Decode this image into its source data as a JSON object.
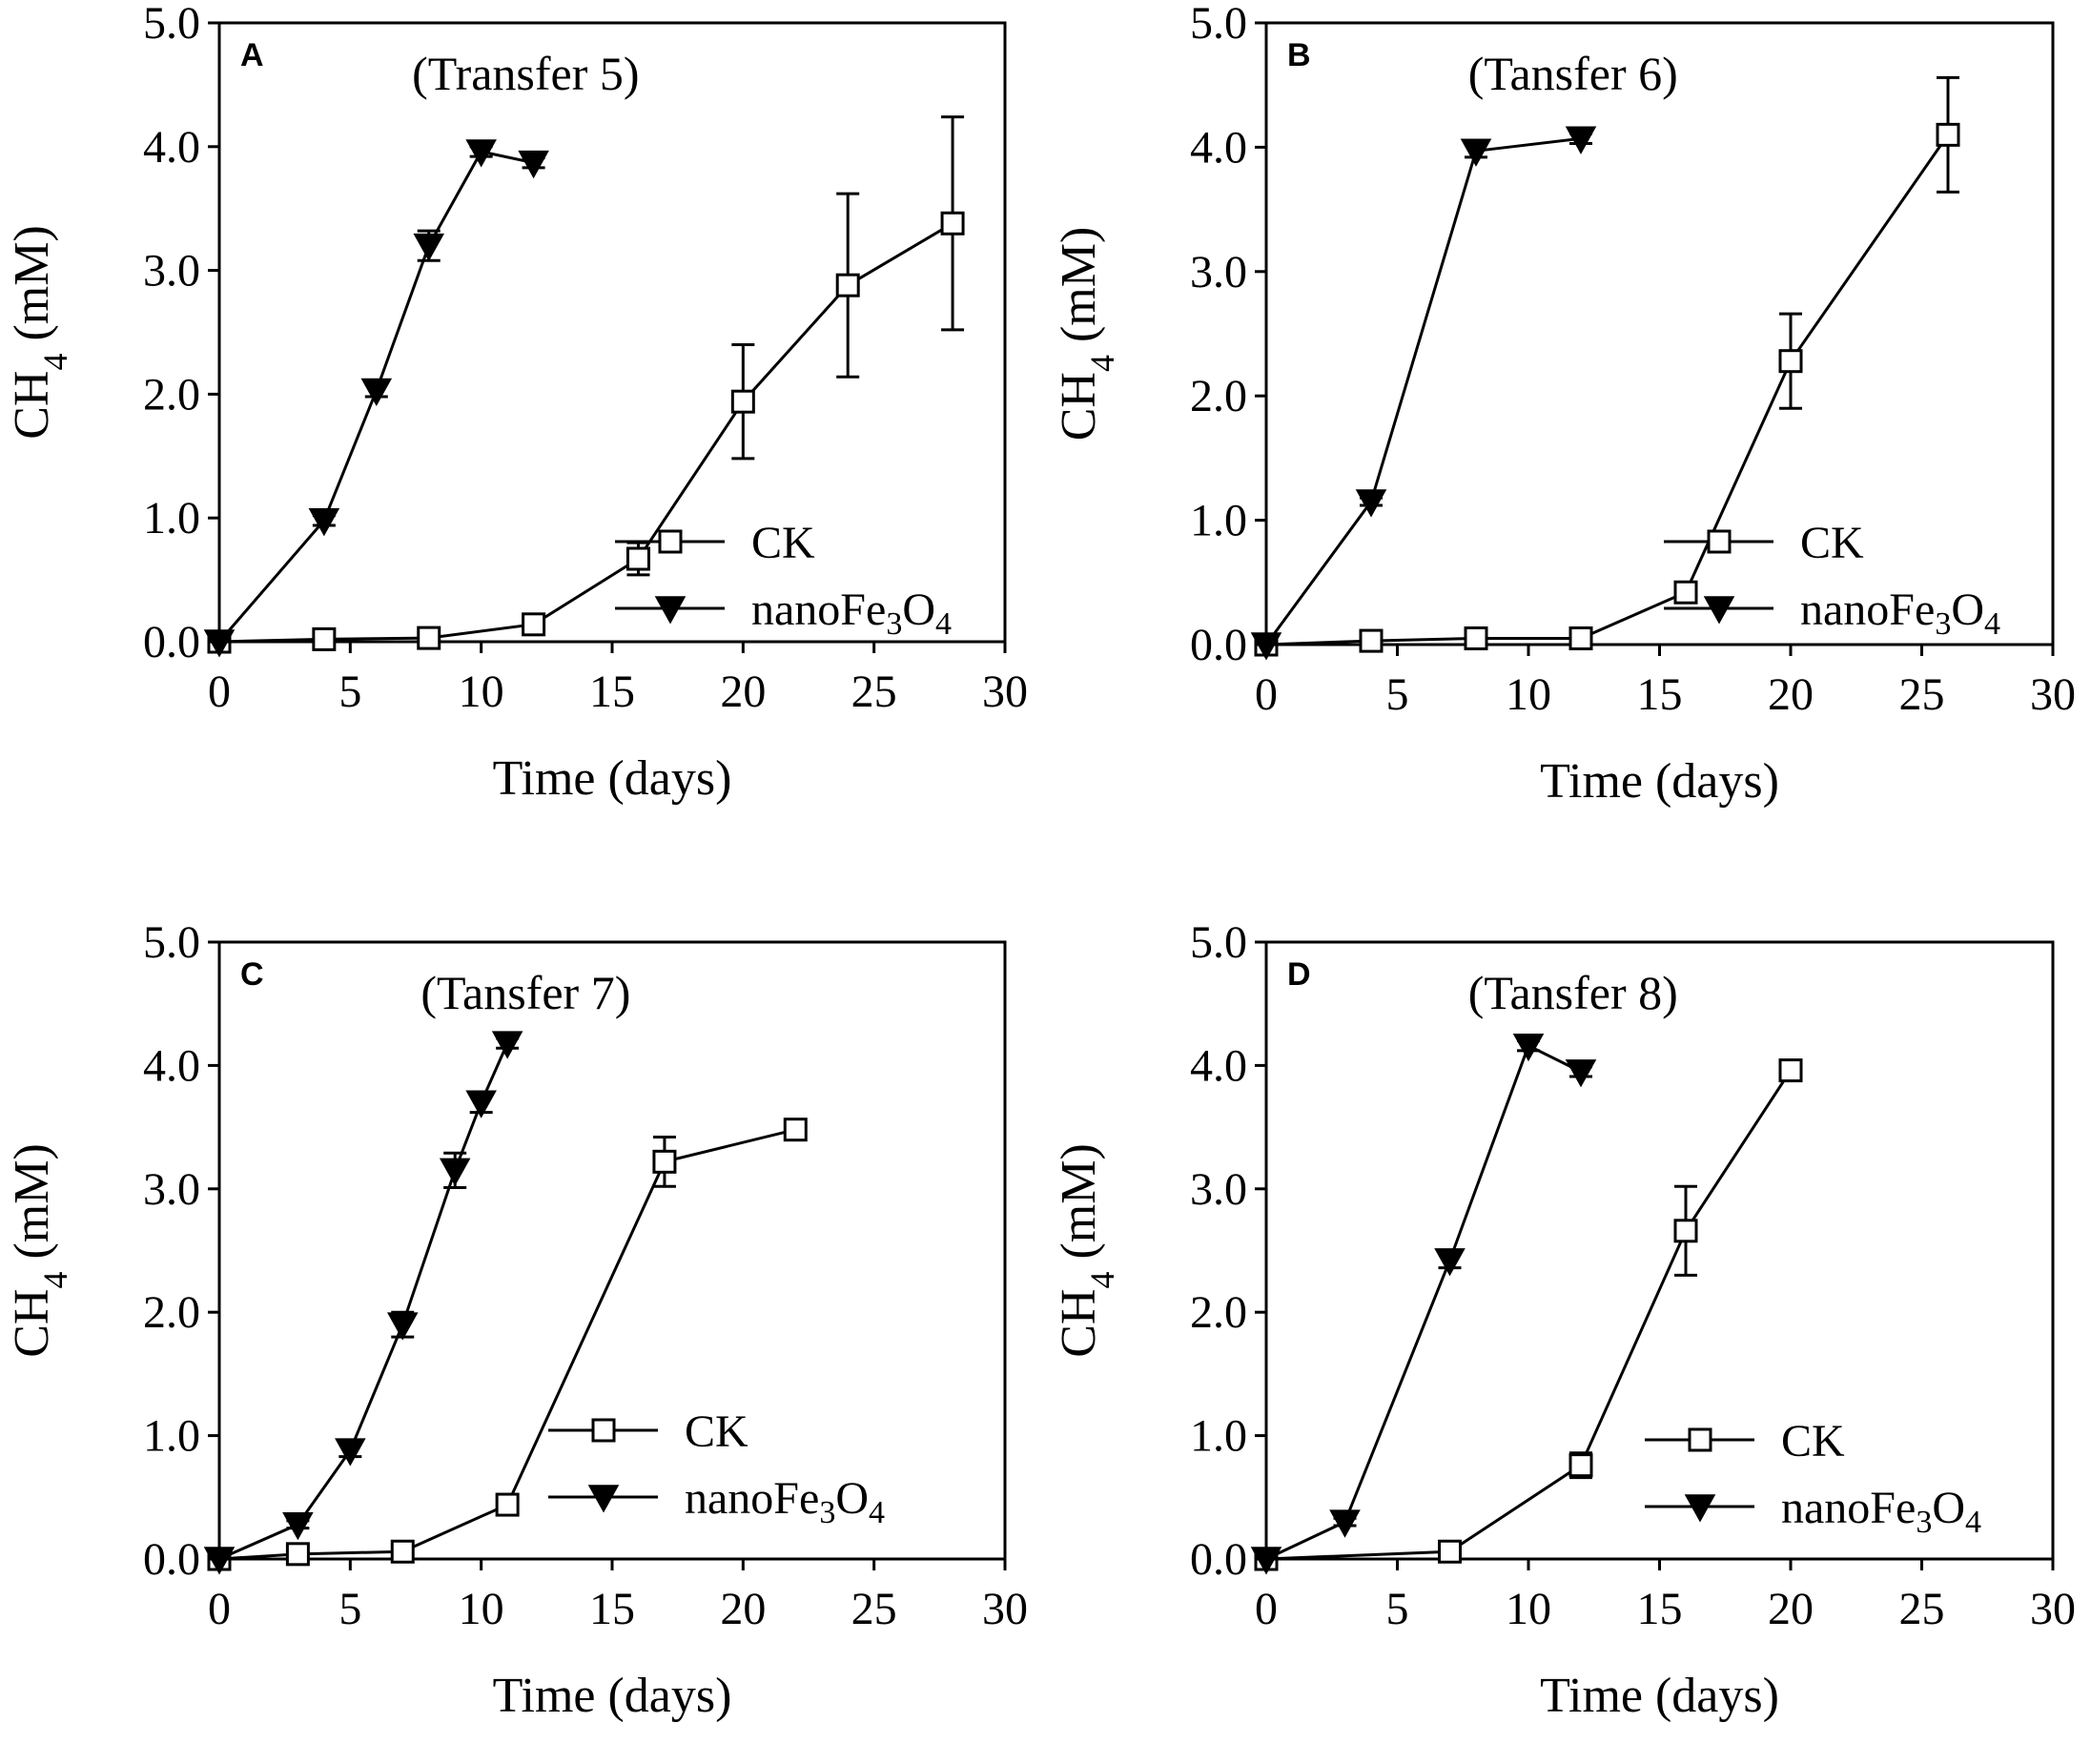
{
  "colors": {
    "line": "#000000",
    "background": "#ffffff"
  },
  "legend": {
    "ck_label": "CK",
    "nano_label_prefix": "nanoFe",
    "nano_sub1": "3",
    "nano_mid": "O",
    "nano_sub2": "4"
  },
  "axis_common": {
    "xlabel": "Time (days)",
    "ylabel_prefix": "CH",
    "ylabel_sub": "4",
    "ylabel_suffix": " (mM)",
    "x_ticks": [
      "0",
      "5",
      "10",
      "15",
      "20",
      "25",
      "30"
    ],
    "y_ticks": [
      "0.0",
      "1.0",
      "2.0",
      "3.0",
      "4.0",
      "5.0"
    ]
  },
  "chart_data": [
    {
      "panel": "A",
      "type": "line",
      "title": "(Transfer 5)",
      "xlim": [
        0,
        30
      ],
      "ylim": [
        0,
        5
      ],
      "series": [
        {
          "name": "CK",
          "marker": "open-square",
          "x": [
            0,
            4,
            8,
            12,
            16,
            20,
            24,
            28
          ],
          "y": [
            0.0,
            0.02,
            0.03,
            0.14,
            0.67,
            1.94,
            2.88,
            3.38
          ],
          "err": [
            0.02,
            0.02,
            0.02,
            0.04,
            0.13,
            0.46,
            0.74,
            0.86
          ]
        },
        {
          "name": "nanoFe3O4",
          "marker": "filled-down-triangle",
          "x": [
            0,
            4,
            6,
            8,
            10,
            12
          ],
          "y": [
            0.0,
            0.98,
            2.03,
            3.2,
            3.96,
            3.87
          ],
          "err": [
            0.02,
            0.04,
            0.05,
            0.12,
            0.04,
            0.04
          ]
        }
      ]
    },
    {
      "panel": "B",
      "type": "line",
      "title": "(Tansfer 6)",
      "xlim": [
        0,
        30
      ],
      "ylim": [
        0,
        5
      ],
      "series": [
        {
          "name": "CK",
          "marker": "open-square",
          "x": [
            0,
            4,
            8,
            12,
            16,
            20,
            26
          ],
          "y": [
            0.0,
            0.03,
            0.05,
            0.05,
            0.42,
            2.28,
            4.1
          ],
          "err": [
            0.02,
            0.02,
            0.02,
            0.02,
            0.08,
            0.38,
            0.46
          ]
        },
        {
          "name": "nanoFe3O4",
          "marker": "filled-down-triangle",
          "x": [
            0,
            4,
            8,
            12
          ],
          "y": [
            0.0,
            1.15,
            3.97,
            4.07
          ],
          "err": [
            0.02,
            0.03,
            0.05,
            0.04
          ]
        }
      ]
    },
    {
      "panel": "C",
      "type": "line",
      "title": "(Tansfer 7)",
      "xlim": [
        0,
        30
      ],
      "ylim": [
        0,
        5
      ],
      "series": [
        {
          "name": "CK",
          "marker": "open-square",
          "x": [
            0,
            3,
            7,
            11,
            17,
            22
          ],
          "y": [
            0.0,
            0.04,
            0.06,
            0.44,
            3.22,
            3.48
          ],
          "err": [
            0.02,
            0.02,
            0.02,
            0.08,
            0.2,
            0.06
          ]
        },
        {
          "name": "nanoFe3O4",
          "marker": "filled-down-triangle",
          "x": [
            0,
            3,
            5,
            7,
            9,
            10,
            11
          ],
          "y": [
            0.0,
            0.28,
            0.88,
            1.9,
            3.15,
            3.7,
            4.18
          ],
          "err": [
            0.02,
            0.03,
            0.05,
            0.1,
            0.14,
            0.08,
            0.04
          ]
        }
      ]
    },
    {
      "panel": "D",
      "type": "line",
      "title": "(Tansfer 8)",
      "xlim": [
        0,
        30
      ],
      "ylim": [
        0,
        5
      ],
      "series": [
        {
          "name": "CK",
          "marker": "open-square",
          "x": [
            0,
            7,
            12,
            16,
            20
          ],
          "y": [
            0.0,
            0.06,
            0.76,
            2.66,
            3.96
          ],
          "err": [
            0.02,
            0.02,
            0.1,
            0.36,
            0.06
          ]
        },
        {
          "name": "nanoFe3O4",
          "marker": "filled-down-triangle",
          "x": [
            0,
            3,
            7,
            10,
            12
          ],
          "y": [
            0.0,
            0.3,
            2.42,
            4.16,
            3.95
          ],
          "err": [
            0.02,
            0.03,
            0.06,
            0.04,
            0.04
          ]
        }
      ]
    }
  ]
}
